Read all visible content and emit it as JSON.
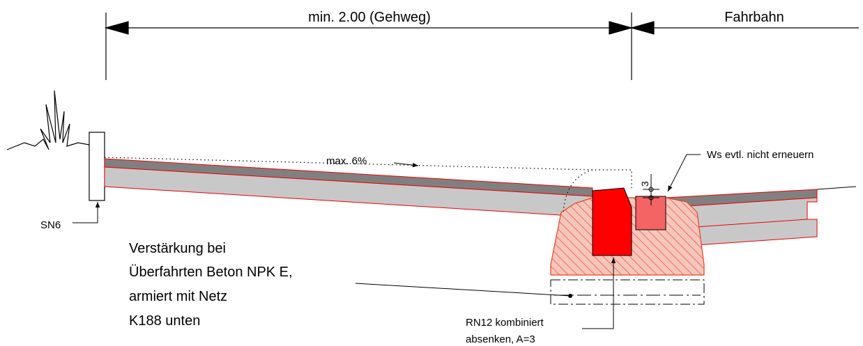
{
  "dimensions": {
    "sidewalk": "min. 2.00 (Gehweg)",
    "roadway": "Fahrbahn",
    "offset": "3"
  },
  "labels": {
    "slope": "max. 6%",
    "curb_note": "Ws evtl. nicht erneuern",
    "post": "SN6"
  },
  "reinforcement_note": [
    "Verstärkung bei",
    "Überfahrten Beton NPK E,",
    "armiert mit Netz",
    "K188 unten"
  ],
  "curb_stone_note": [
    "RN12 kombiniert",
    "absenken, A=3"
  ]
}
